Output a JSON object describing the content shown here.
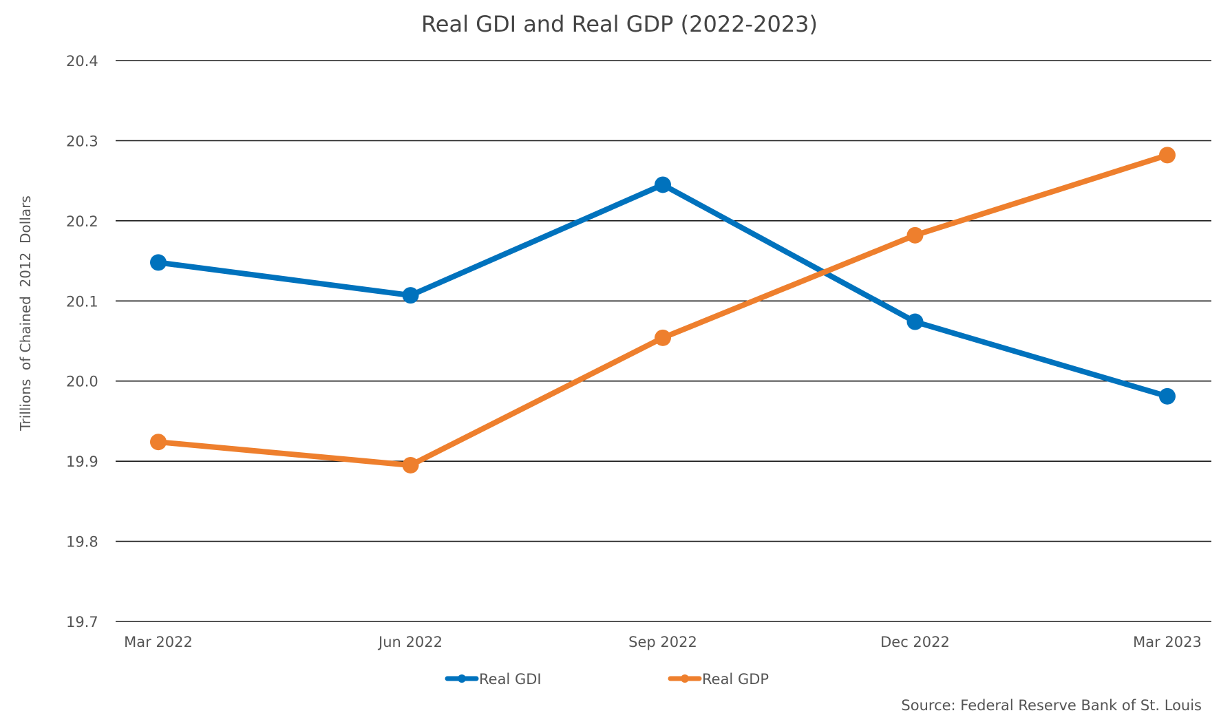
{
  "chart_data": {
    "type": "line",
    "title": "Real GDI and Real GDP (2022-2023)",
    "ylabel": "Trillions  of Chained  2012  Dollars",
    "xlabel": "",
    "source": "Source: Federal Reserve Bank of St. Louis",
    "categories": [
      "Mar 2022",
      "Jun 2022",
      "Sep 2022",
      "Dec 2022",
      "Mar 2023"
    ],
    "ylim": [
      19.7,
      20.4
    ],
    "yticks": [
      19.7,
      19.8,
      19.9,
      20.0,
      20.1,
      20.2,
      20.3,
      20.4
    ],
    "ytick_labels": [
      "19.7",
      "19.8",
      "19.9",
      "20.0",
      "20.1",
      "20.2",
      "20.3",
      "20.4"
    ],
    "grid": true,
    "legend": "bottom-center",
    "series": [
      {
        "name": "Real GDI",
        "color": "#0072bd",
        "values": [
          20.148,
          20.107,
          20.245,
          20.074,
          19.981
        ]
      },
      {
        "name": "Real GDP",
        "color": "#ee7f2d",
        "values": [
          19.924,
          19.895,
          20.054,
          20.182,
          20.282
        ]
      }
    ]
  }
}
